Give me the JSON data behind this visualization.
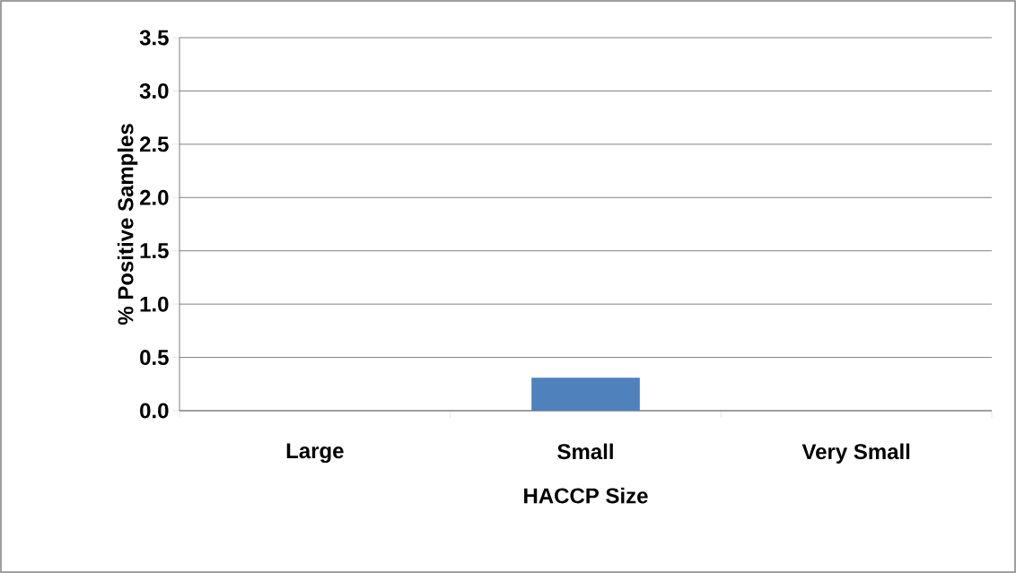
{
  "chart_data": {
    "type": "bar",
    "xlabel": "HACCP Size",
    "ylabel": "% Positive Samples",
    "categories": [
      "Large",
      "Small",
      "Very Small"
    ],
    "values": [
      0,
      0.31,
      0
    ],
    "color": "#4f81bd",
    "ylim": [
      0,
      3.5
    ],
    "yticks": [
      {
        "value": 0,
        "label": "0.0"
      },
      {
        "value": 0.5,
        "label": "0.5"
      },
      {
        "value": 1,
        "label": "1.0"
      },
      {
        "value": 1.5,
        "label": "1.5"
      },
      {
        "value": 2,
        "label": "2.0"
      },
      {
        "value": 2.5,
        "label": "2.5"
      },
      {
        "value": 3,
        "label": "3.0"
      },
      {
        "value": 3.5,
        "label": "3.5"
      }
    ],
    "grid": "y"
  }
}
